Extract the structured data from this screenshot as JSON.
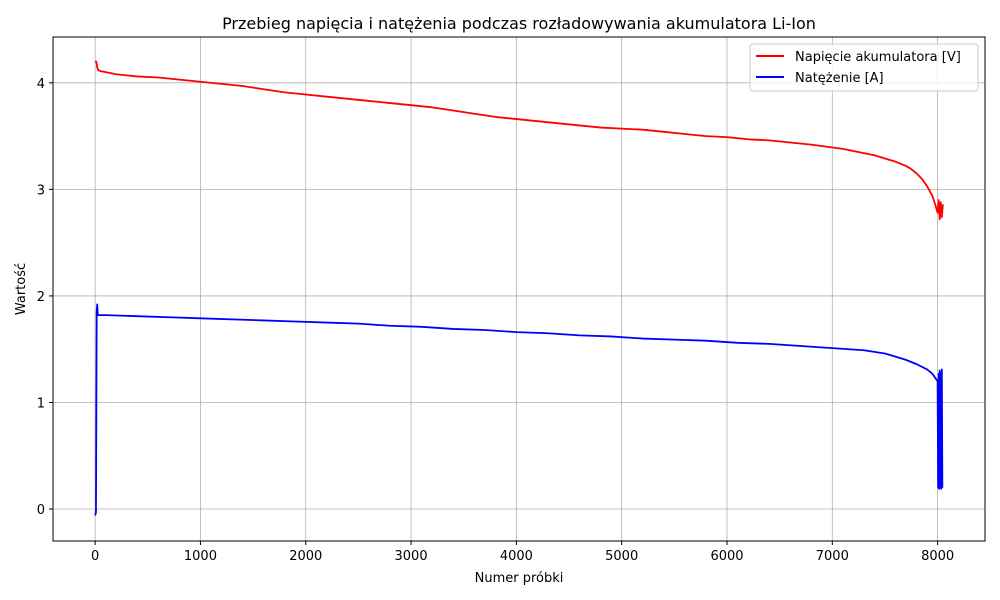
{
  "chart_data": {
    "type": "line",
    "title": "Przebieg napięcia i natężenia podczas rozładowywania akumulatora Li-Ion",
    "xlabel": "Numer próbki",
    "ylabel": "Wartość",
    "xlim": [
      -400,
      8450
    ],
    "ylim": [
      -0.3,
      4.43
    ],
    "xticks": [
      0,
      1000,
      2000,
      3000,
      4000,
      5000,
      6000,
      7000,
      8000
    ],
    "yticks": [
      0,
      1,
      2,
      3,
      4
    ],
    "grid": true,
    "legend_position": "top-right",
    "series": [
      {
        "name": "Napięcie akumulatora [V]",
        "color": "#ff0000",
        "x": [
          0,
          10,
          15,
          20,
          30,
          50,
          100,
          200,
          400,
          600,
          800,
          1000,
          1200,
          1400,
          1600,
          1800,
          2000,
          2200,
          2400,
          2600,
          2800,
          3000,
          3200,
          3400,
          3600,
          3800,
          4000,
          4200,
          4400,
          4600,
          4800,
          5000,
          5200,
          5400,
          5600,
          5800,
          6000,
          6200,
          6400,
          6600,
          6800,
          6950,
          7100,
          7200,
          7300,
          7400,
          7500,
          7600,
          7700,
          7750,
          7800,
          7850,
          7900,
          7950,
          7980,
          8000,
          8010,
          8020,
          8030,
          8040,
          8050
        ],
        "values": [
          4.2,
          4.2,
          4.18,
          4.14,
          4.12,
          4.11,
          4.1,
          4.08,
          4.06,
          4.05,
          4.03,
          4.01,
          3.99,
          3.97,
          3.94,
          3.91,
          3.89,
          3.87,
          3.85,
          3.83,
          3.81,
          3.79,
          3.77,
          3.74,
          3.71,
          3.68,
          3.66,
          3.64,
          3.62,
          3.6,
          3.58,
          3.57,
          3.56,
          3.54,
          3.52,
          3.5,
          3.49,
          3.47,
          3.46,
          3.44,
          3.42,
          3.4,
          3.38,
          3.36,
          3.34,
          3.32,
          3.29,
          3.26,
          3.22,
          3.19,
          3.15,
          3.1,
          3.03,
          2.94,
          2.85,
          2.78,
          2.9,
          2.72,
          2.88,
          2.74,
          2.86
        ]
      },
      {
        "name": "Natężenie [A]",
        "color": "#0000ff",
        "x": [
          0,
          8,
          15,
          20,
          25,
          100,
          400,
          700,
          1000,
          1300,
          1600,
          1900,
          2200,
          2500,
          2800,
          3100,
          3400,
          3700,
          4000,
          4300,
          4600,
          4900,
          5200,
          5500,
          5800,
          6100,
          6400,
          6700,
          7000,
          7300,
          7500,
          7600,
          7700,
          7800,
          7900,
          7950,
          8000,
          8005,
          8010,
          8015,
          8020,
          8025,
          8030,
          8035,
          8040,
          8045
        ],
        "values": [
          -0.06,
          -0.03,
          1.85,
          1.92,
          1.82,
          1.82,
          1.81,
          1.8,
          1.79,
          1.78,
          1.77,
          1.76,
          1.75,
          1.74,
          1.72,
          1.71,
          1.69,
          1.68,
          1.66,
          1.65,
          1.63,
          1.62,
          1.6,
          1.59,
          1.58,
          1.56,
          1.55,
          1.53,
          1.51,
          1.49,
          1.46,
          1.43,
          1.4,
          1.36,
          1.31,
          1.27,
          1.2,
          0.2,
          1.27,
          0.19,
          1.3,
          0.2,
          1.28,
          0.19,
          1.31,
          0.2
        ]
      }
    ]
  }
}
